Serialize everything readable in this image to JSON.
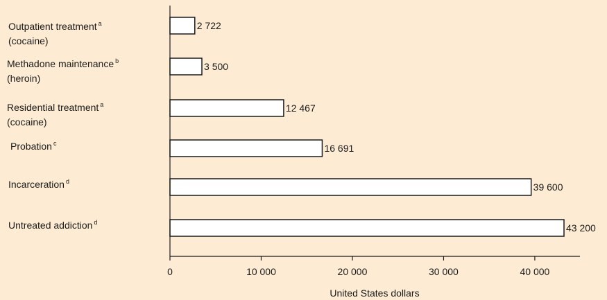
{
  "chart_data": {
    "type": "bar",
    "orientation": "horizontal",
    "categories": [
      {
        "lines": [
          "Outpatient treatment",
          "(cocaine)"
        ],
        "sup": "a"
      },
      {
        "lines": [
          "Methadone maintenance",
          "(heroin)"
        ],
        "sup": "b"
      },
      {
        "lines": [
          "Residential treatment",
          "(cocaine)"
        ],
        "sup": "a"
      },
      {
        "lines": [
          "Probation"
        ],
        "sup": "c"
      },
      {
        "lines": [
          "Incarceration"
        ],
        "sup": "d"
      },
      {
        "lines": [
          "Untreated addiction"
        ],
        "sup": "d"
      }
    ],
    "values": [
      2722,
      3500,
      12467,
      16691,
      39600,
      43200
    ],
    "value_labels": [
      "2 722",
      "3 500",
      "12 467",
      "16 691",
      "39 600",
      "43 200"
    ],
    "xlabel": "United States dollars",
    "xlim": [
      0,
      45000
    ],
    "xticks": [
      0,
      10000,
      20000,
      30000,
      40000
    ],
    "xtick_labels": [
      "0",
      "10 000",
      "20 000",
      "30 000",
      "40 000"
    ],
    "grid": false,
    "colors": {
      "bar_fill": "#ffffff",
      "bar_stroke": "#1a1a1a",
      "background": "#fdecd3"
    }
  }
}
